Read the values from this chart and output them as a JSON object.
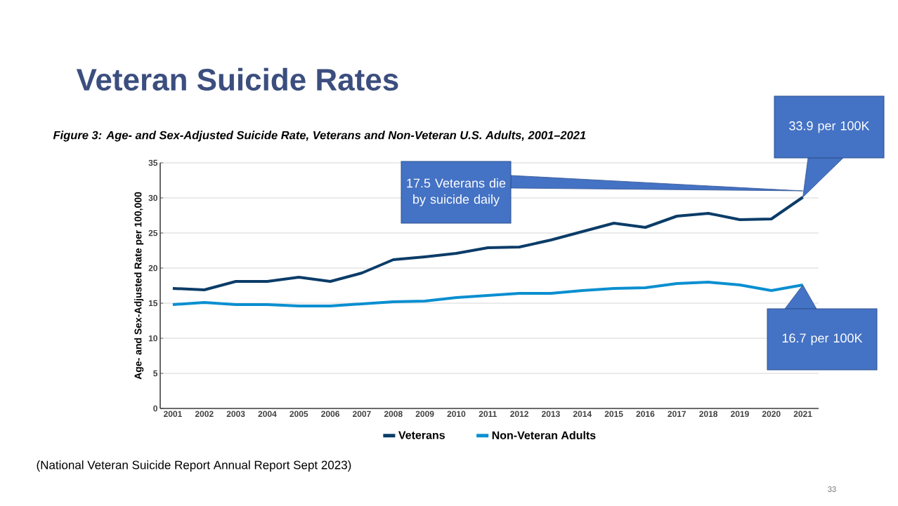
{
  "chart_data": {
    "type": "line",
    "title": "Veteran Suicide Rates",
    "subtitle": "Figure 3: Age- and Sex-Adjusted Suicide Rate, Veterans and Non-Veteran U.S. Adults, 2001–2021",
    "ylabel": "Age- and Sex-Adjusted Rate per 100,000",
    "categories": [
      "2001",
      "2002",
      "2003",
      "2004",
      "2005",
      "2006",
      "2007",
      "2008",
      "2009",
      "2010",
      "2011",
      "2012",
      "2013",
      "2014",
      "2015",
      "2016",
      "2017",
      "2018",
      "2019",
      "2020",
      "2021"
    ],
    "series": [
      {
        "name": "Veterans",
        "color": "#0b3c68",
        "values": [
          17.1,
          16.9,
          18.1,
          18.1,
          18.7,
          18.1,
          19.3,
          21.2,
          21.6,
          22.1,
          22.9,
          23.0,
          24.0,
          25.2,
          26.4,
          25.8,
          27.4,
          27.8,
          26.9,
          27.0,
          30.1
        ]
      },
      {
        "name": "Non-Veteran Adults",
        "color": "#0a8fd0",
        "values": [
          14.8,
          15.1,
          14.8,
          14.8,
          14.6,
          14.6,
          14.9,
          15.2,
          15.3,
          15.8,
          16.1,
          16.4,
          16.4,
          16.8,
          17.1,
          17.2,
          17.8,
          18.0,
          17.6,
          16.8,
          17.6
        ]
      }
    ],
    "ylim": [
      0,
      35
    ],
    "yticks": [
      0,
      5,
      10,
      15,
      20,
      25,
      30,
      35
    ],
    "grid": "y",
    "legend": "bottom",
    "annotations": [
      "17.5 Veterans die by suicide daily",
      "33.9 per 100K",
      "16.7 per 100K",
      "(National Veteran Suicide Report Annual Report Sept 2023)",
      "33"
    ]
  }
}
